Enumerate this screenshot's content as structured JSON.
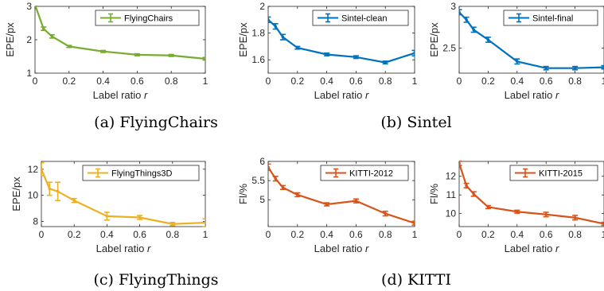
{
  "captions": [
    {
      "text": "(a) FlyingChairs"
    },
    {
      "text": "(b) Sintel"
    },
    {
      "text": "(c) FlyingThings"
    },
    {
      "text": "(d) KITTI"
    }
  ],
  "chart_data": [
    {
      "type": "line",
      "legend": "FlyingChairs",
      "color": "#77ac30",
      "xlabel": "Label ratio",
      "xlabel_var": "r",
      "ylabel": "EPE/px",
      "xlim": [
        0,
        1
      ],
      "ylim": [
        1,
        3
      ],
      "xticks": [
        0,
        0.2,
        0.4,
        0.6,
        0.8,
        1
      ],
      "xtick_labels": [
        "0",
        "0.2",
        "0.4",
        "0.6",
        "0.8",
        "1"
      ],
      "yticks": [
        1,
        2,
        3
      ],
      "ytick_labels": [
        "1",
        "2",
        "3"
      ],
      "x": [
        0,
        0.05,
        0.1,
        0.2,
        0.4,
        0.6,
        0.8,
        1
      ],
      "y": [
        3.05,
        2.33,
        2.1,
        1.8,
        1.65,
        1.55,
        1.53,
        1.43
      ],
      "err": [
        0.04,
        0.05,
        0.05,
        0.03,
        0.03,
        0.03,
        0.03,
        0.04
      ]
    },
    {
      "type": "line",
      "legend": "Sintel-clean",
      "color": "#0072bd",
      "xlabel": "Label ratio",
      "xlabel_var": "r",
      "ylabel": "EPE/px",
      "xlim": [
        0,
        1
      ],
      "ylim": [
        1.5,
        2
      ],
      "xticks": [
        0,
        0.2,
        0.4,
        0.6,
        0.8,
        1
      ],
      "xtick_labels": [
        "0",
        "0.2",
        "0.4",
        "0.6",
        "0.8",
        "1"
      ],
      "yticks": [
        1.6,
        1.8,
        2
      ],
      "ytick_labels": [
        "1.6",
        "1.8",
        "2"
      ],
      "x": [
        0,
        0.05,
        0.1,
        0.2,
        0.4,
        0.6,
        0.8,
        1
      ],
      "y": [
        1.9,
        1.85,
        1.77,
        1.69,
        1.64,
        1.62,
        1.58,
        1.65
      ],
      "err": [
        0.02,
        0.02,
        0.02,
        0.01,
        0.01,
        0.01,
        0.01,
        0.02
      ]
    },
    {
      "type": "line",
      "legend": "Sintel-final",
      "color": "#0072bd",
      "xlabel": "Label ratio",
      "xlabel_var": "r",
      "ylabel": "EPE/px",
      "xlim": [
        0,
        1
      ],
      "ylim": [
        2.2,
        3
      ],
      "xticks": [
        0,
        0.2,
        0.4,
        0.6,
        0.8,
        1
      ],
      "xtick_labels": [
        "0",
        "0.2",
        "0.4",
        "0.6",
        "0.8",
        "1"
      ],
      "yticks": [
        2.5,
        3
      ],
      "ytick_labels": [
        "2.5",
        "3"
      ],
      "x": [
        0,
        0.05,
        0.1,
        0.2,
        0.4,
        0.6,
        0.8,
        1
      ],
      "y": [
        2.93,
        2.84,
        2.72,
        2.6,
        2.34,
        2.26,
        2.26,
        2.27
      ],
      "err": [
        0.03,
        0.03,
        0.03,
        0.03,
        0.03,
        0.02,
        0.02,
        0.02
      ]
    },
    {
      "type": "line",
      "legend": "FlyingThings3D",
      "color": "#edb120",
      "xlabel": "Label ratio",
      "xlabel_var": "r",
      "ylabel": "EPE/px",
      "xlim": [
        0,
        1
      ],
      "ylim": [
        7.6,
        12.6
      ],
      "xticks": [
        0,
        0.2,
        0.4,
        0.6,
        0.8,
        1
      ],
      "xtick_labels": [
        "0",
        "0.2",
        "0.4",
        "0.6",
        "0.8",
        "1"
      ],
      "yticks": [
        8,
        10,
        12
      ],
      "ytick_labels": [
        "8",
        "10",
        "12"
      ],
      "x": [
        0,
        0.05,
        0.1,
        0.2,
        0.4,
        0.6,
        0.8,
        1
      ],
      "y": [
        12.0,
        10.5,
        10.3,
        9.6,
        8.4,
        8.3,
        7.8,
        7.9
      ],
      "err": [
        0.5,
        0.5,
        0.7,
        0.15,
        0.3,
        0.15,
        0.12,
        0.3
      ]
    },
    {
      "type": "line",
      "legend": "KITTI-2012",
      "color": "#d95319",
      "xlabel": "Label ratio",
      "xlabel_var": "r",
      "ylabel": "Fl/%",
      "xlim": [
        0,
        1
      ],
      "ylim": [
        4.3,
        6
      ],
      "xticks": [
        0,
        0.2,
        0.4,
        0.6,
        0.8,
        1
      ],
      "xtick_labels": [
        "0",
        "0.2",
        "0.4",
        "0.6",
        "0.8",
        "1"
      ],
      "yticks": [
        5,
        5.5,
        6
      ],
      "ytick_labels": [
        "5",
        "5.5",
        "6"
      ],
      "x": [
        0,
        0.05,
        0.1,
        0.2,
        0.4,
        0.6,
        0.8,
        1
      ],
      "y": [
        5.85,
        5.55,
        5.32,
        5.13,
        4.88,
        4.97,
        4.64,
        4.39
      ],
      "err": [
        0.08,
        0.06,
        0.05,
        0.05,
        0.04,
        0.05,
        0.06,
        0.05
      ]
    },
    {
      "type": "line",
      "legend": "KITTI-2015",
      "color": "#d95319",
      "xlabel": "Label ratio",
      "xlabel_var": "r",
      "ylabel": "Fl/%",
      "xlim": [
        0,
        1
      ],
      "ylim": [
        9.3,
        12.8
      ],
      "xticks": [
        0,
        0.2,
        0.4,
        0.6,
        0.8,
        1
      ],
      "xtick_labels": [
        "0",
        "0.2",
        "0.4",
        "0.6",
        "0.8",
        "1"
      ],
      "yticks": [
        10,
        11,
        12
      ],
      "ytick_labels": [
        "10",
        "11",
        "12"
      ],
      "x": [
        0,
        0.05,
        0.1,
        0.2,
        0.4,
        0.6,
        0.8,
        1
      ],
      "y": [
        12.7,
        11.5,
        11.05,
        10.35,
        10.1,
        9.95,
        9.78,
        9.45
      ],
      "err": [
        0.12,
        0.12,
        0.12,
        0.08,
        0.08,
        0.12,
        0.12,
        0.08
      ]
    }
  ]
}
